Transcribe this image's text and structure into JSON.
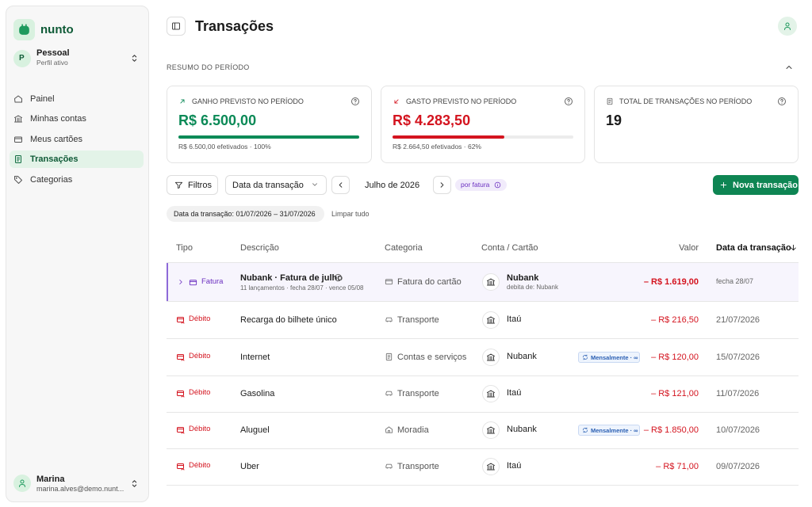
{
  "sidebar": {
    "brand": "nunto",
    "profile": {
      "initial": "P",
      "name": "Pessoal",
      "subtitle": "Perfil ativo"
    },
    "nav": [
      {
        "label": "Painel",
        "active": false
      },
      {
        "label": "Minhas contas",
        "active": false
      },
      {
        "label": "Meus cartões",
        "active": false
      },
      {
        "label": "Transações",
        "active": true
      },
      {
        "label": "Categorias",
        "active": false
      }
    ],
    "user": {
      "name": "Marina",
      "email": "marina.alves@demo.nunt..."
    }
  },
  "header": {
    "title": "Transações"
  },
  "summary": {
    "label": "RESUMO DO PERÍODO",
    "cards": [
      {
        "label": "GANHO PREVISTO NO PERÍODO",
        "value": "R$ 6.500,00",
        "progress": 100,
        "note": "R$ 6.500,00 efetivados · 100%",
        "color": "#0b8a57"
      },
      {
        "label": "GASTO PREVISTO NO PERÍODO",
        "value": "R$ 4.283,50",
        "progress": 62,
        "note": "R$ 2.664,50 efetivados · 62%",
        "color": "#d4141f"
      },
      {
        "label": "TOTAL DE TRANSAÇÕES NO PERÍODO",
        "value": "19",
        "color": "#1a1a1a"
      }
    ]
  },
  "toolbar": {
    "filters": "Filtros",
    "date_select": "Data da transação",
    "month": "Julho de 2026",
    "mode_badge": "por fatura",
    "new_button": "Nova transação",
    "active_filter": "Data da transação: 01/07/2026 – 31/07/2026",
    "clear": "Limpar tudo"
  },
  "table": {
    "columns": [
      "Tipo",
      "Descrição",
      "Categoria",
      "Conta / Cartão",
      "Valor",
      "Data da transação"
    ],
    "rows": [
      {
        "type": "Fatura",
        "description": "Nubank · Fatura de julho",
        "detail": "11 lançamentos · fecha 28/07 · vence 05/08",
        "category": "Fatura do cartão",
        "account": "Nubank",
        "account_detail": "debita de: Nubank",
        "value": "– R$ 1.619,00",
        "date": "fecha 28/07"
      },
      {
        "type": "Débito",
        "description": "Recarga do bilhete único",
        "category": "Transporte",
        "account": "Itaú",
        "value": "– R$ 216,50",
        "date": "21/07/2026"
      },
      {
        "type": "Débito",
        "description": "Internet",
        "category": "Contas e serviços",
        "account": "Nubank",
        "recurrence": "Mensalmente · ∞",
        "value": "– R$ 120,00",
        "date": "15/07/2026"
      },
      {
        "type": "Débito",
        "description": "Gasolina",
        "category": "Transporte",
        "account": "Itaú",
        "value": "– R$ 121,00",
        "date": "11/07/2026"
      },
      {
        "type": "Débito",
        "description": "Aluguel",
        "category": "Moradia",
        "account": "Nubank",
        "recurrence": "Mensalmente · ∞",
        "value": "– R$ 1.850,00",
        "date": "10/07/2026"
      },
      {
        "type": "Débito",
        "description": "Uber",
        "category": "Transporte",
        "account": "Itaú",
        "value": "– R$ 71,00",
        "date": "09/07/2026"
      }
    ]
  }
}
